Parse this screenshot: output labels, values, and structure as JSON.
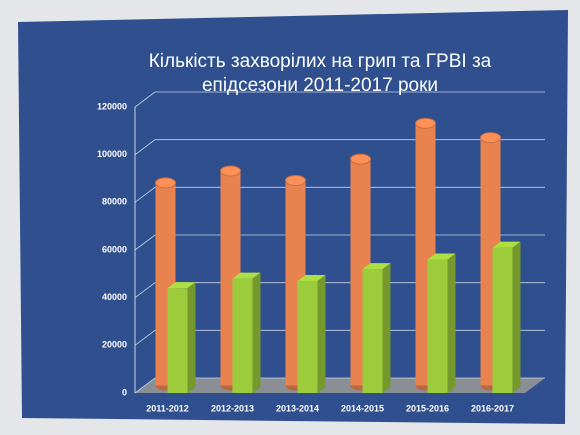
{
  "chart_data": {
    "type": "bar3d",
    "title": "Кількість захворілих на грип та ГРВІ за епідсезони 2011-2017 роки",
    "categories": [
      "2011-2012",
      "2012-2013",
      "2013-2014",
      "2014-2015",
      "2015-2016",
      "2016-2017"
    ],
    "series": [
      {
        "color": "#e8834f",
        "values": [
          85000,
          90000,
          86000,
          95000,
          110000,
          104000
        ]
      },
      {
        "color": "#9ccc3c",
        "values": [
          44000,
          48000,
          47000,
          52000,
          56000,
          61000
        ]
      }
    ],
    "ylim": [
      0,
      120000
    ],
    "yticks": [
      0,
      20000,
      40000,
      60000,
      80000,
      100000,
      120000
    ],
    "grid": true
  }
}
